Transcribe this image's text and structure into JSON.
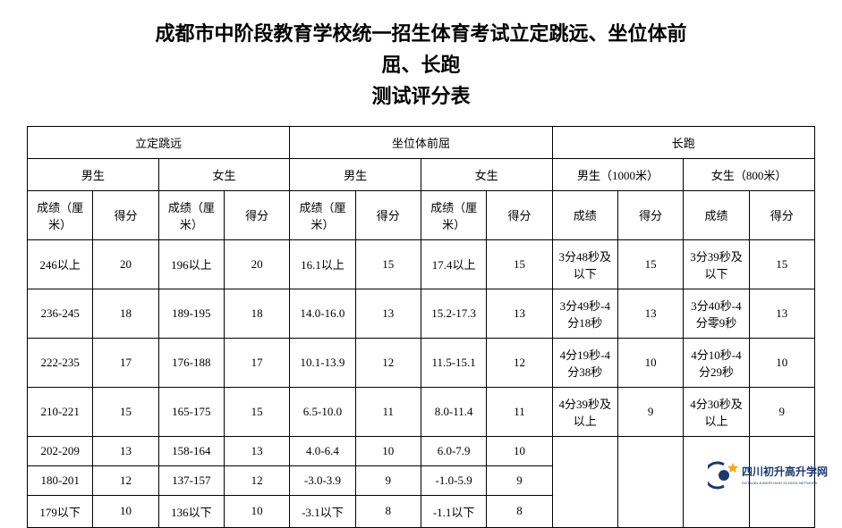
{
  "title": {
    "line1": "成都市中阶段教育学校统一招生体育考试立定跳远、坐位体前",
    "line2": "屈、长跑",
    "line3": "测试评分表"
  },
  "headers": {
    "section1": "立定跳远",
    "section2": "坐位体前屈",
    "section3": "长跑",
    "male": "男生",
    "female": "女生",
    "male_run": "男生（1000米）",
    "female_run": "女生（800米）",
    "score_cm": "成绩（厘米）",
    "score": "成绩",
    "points": "得分"
  },
  "colors": {
    "text": "#000000",
    "border": "#000000",
    "background": "#ffffff",
    "watermark_blue": "#1a3a6e",
    "watermark_orange": "#f5a623"
  },
  "typography": {
    "title_fontsize": 22,
    "cell_fontsize": 13,
    "title_weight": "bold"
  },
  "rows": [
    {
      "ljm_m_score": "246以上",
      "ljm_m_pt": "20",
      "ljm_f_score": "196以上",
      "ljm_f_pt": "20",
      "zwt_m_score": "16.1以上",
      "zwt_m_pt": "15",
      "zwt_f_score": "17.4以上",
      "zwt_f_pt": "15",
      "run_m_score": "3分48秒及以下",
      "run_m_pt": "15",
      "run_f_score": "3分39秒及以下",
      "run_f_pt": "15"
    },
    {
      "ljm_m_score": "236-245",
      "ljm_m_pt": "18",
      "ljm_f_score": "189-195",
      "ljm_f_pt": "18",
      "zwt_m_score": "14.0-16.0",
      "zwt_m_pt": "13",
      "zwt_f_score": "15.2-17.3",
      "zwt_f_pt": "13",
      "run_m_score": "3分49秒-4分18秒",
      "run_m_pt": "13",
      "run_f_score": "3分40秒-4分零9秒",
      "run_f_pt": "13"
    },
    {
      "ljm_m_score": "222-235",
      "ljm_m_pt": "17",
      "ljm_f_score": "176-188",
      "ljm_f_pt": "17",
      "zwt_m_score": "10.1-13.9",
      "zwt_m_pt": "12",
      "zwt_f_score": "11.5-15.1",
      "zwt_f_pt": "12",
      "run_m_score": "4分19秒-4分38秒",
      "run_m_pt": "10",
      "run_f_score": "4分10秒-4分29秒",
      "run_f_pt": "10"
    },
    {
      "ljm_m_score": "210-221",
      "ljm_m_pt": "15",
      "ljm_f_score": "165-175",
      "ljm_f_pt": "15",
      "zwt_m_score": "6.5-10.0",
      "zwt_m_pt": "11",
      "zwt_f_score": "8.0-11.4",
      "zwt_f_pt": "11",
      "run_m_score": "4分39秒及以上",
      "run_m_pt": "9",
      "run_f_score": "4分30秒及以上",
      "run_f_pt": "9"
    },
    {
      "ljm_m_score": "202-209",
      "ljm_m_pt": "13",
      "ljm_f_score": "158-164",
      "ljm_f_pt": "13",
      "zwt_m_score": "4.0-6.4",
      "zwt_m_pt": "10",
      "zwt_f_score": "6.0-7.9",
      "zwt_f_pt": "10",
      "run_m_score": "",
      "run_m_pt": "",
      "run_f_score": "",
      "run_f_pt": ""
    },
    {
      "ljm_m_score": "180-201",
      "ljm_m_pt": "12",
      "ljm_f_score": "137-157",
      "ljm_f_pt": "12",
      "zwt_m_score": "-3.0-3.9",
      "zwt_m_pt": "9",
      "zwt_f_score": "-1.0-5.9",
      "zwt_f_pt": "9",
      "run_m_score": "",
      "run_m_pt": "",
      "run_f_score": "",
      "run_f_pt": ""
    },
    {
      "ljm_m_score": "179以下",
      "ljm_m_pt": "10",
      "ljm_f_score": "136以下",
      "ljm_f_pt": "10",
      "zwt_m_score": "-3.1以下",
      "zwt_m_pt": "8",
      "zwt_f_score": "-1.1以下",
      "zwt_f_pt": "8",
      "run_m_score": "",
      "run_m_pt": "",
      "run_f_score": "",
      "run_f_pt": ""
    }
  ],
  "watermark": {
    "main_text": "四川初升高升学网",
    "sub_text": "SICHUAN JUNIOR HIGH SCHOOL NETWORK"
  }
}
